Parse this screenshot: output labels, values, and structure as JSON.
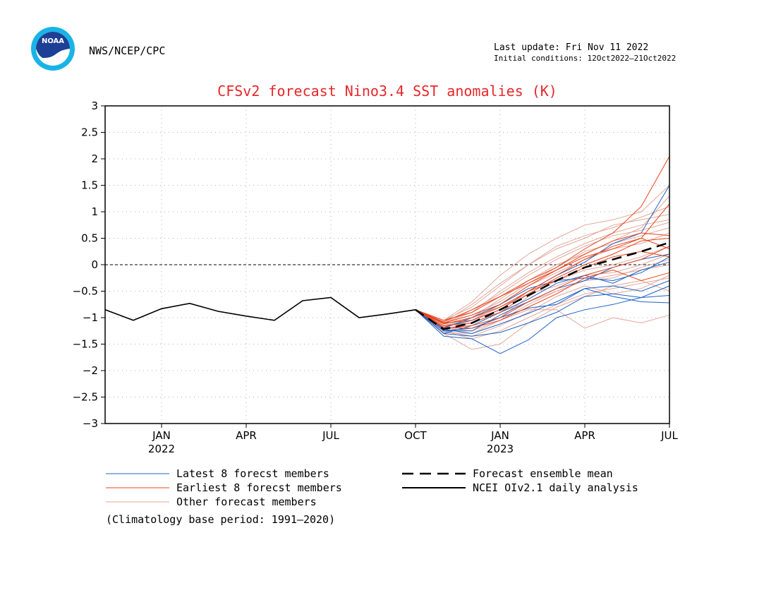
{
  "header": {
    "agency": "NWS/NCEP/CPC",
    "last_update": "Last update: Fri Nov 11 2022",
    "initial_conditions": "Initial conditions: 12Oct2022–21Oct2022",
    "logo_text": "NOAA"
  },
  "colors": {
    "title": "#e8262a",
    "latest": "#1f63c8",
    "earliest": "#e8431c",
    "other": "#e2a79a",
    "mean": "#000000",
    "observed": "#000000",
    "zero_line": "#000000",
    "grid": "#b0b0b0"
  },
  "chart_data": {
    "type": "line",
    "title": "CFSv2 forecast Nino3.4 SST anomalies (K)",
    "xlabel": "",
    "ylabel": "",
    "ylim": [
      -3,
      3
    ],
    "yticks": [
      "3",
      "2.5",
      "2",
      "1.5",
      "1",
      "0.5",
      "0",
      "−0.5",
      "−1",
      "−1.5",
      "−2",
      "−2.5",
      "−3"
    ],
    "x_range_months": [
      "2021-11",
      "2023-07"
    ],
    "x_ticks": [
      {
        "month": "2022-01",
        "label": "JAN",
        "year": "2022"
      },
      {
        "month": "2022-04",
        "label": "APR",
        "year": ""
      },
      {
        "month": "2022-07",
        "label": "JUL",
        "year": ""
      },
      {
        "month": "2022-10",
        "label": "OCT",
        "year": ""
      },
      {
        "month": "2023-01",
        "label": "JAN",
        "year": "2023"
      },
      {
        "month": "2023-04",
        "label": "APR",
        "year": ""
      },
      {
        "month": "2023-07",
        "label": "JUL",
        "year": ""
      }
    ],
    "grid": true,
    "zero_line": "dashed",
    "forecast_months": [
      "2022-10",
      "2022-11",
      "2022-12",
      "2023-01",
      "2023-02",
      "2023-03",
      "2023-04",
      "2023-05",
      "2023-06",
      "2023-07"
    ],
    "observed": {
      "name": "NCEI OIv2.1 daily analysis",
      "months": [
        "2021-11",
        "2021-12",
        "2022-01",
        "2022-02",
        "2022-03",
        "2022-04",
        "2022-05",
        "2022-06",
        "2022-07",
        "2022-08",
        "2022-09",
        "2022-10"
      ],
      "values": [
        -0.85,
        -1.05,
        -0.83,
        -0.73,
        -0.88,
        -0.97,
        -1.05,
        -0.68,
        -0.62,
        -1.0,
        -0.93,
        -0.85
      ]
    },
    "ensemble_mean": {
      "name": "Forecast ensemble mean",
      "values": [
        -0.85,
        -1.22,
        -1.1,
        -0.85,
        -0.58,
        -0.3,
        -0.05,
        0.1,
        0.25,
        0.42
      ]
    },
    "series": [
      {
        "group": "latest",
        "values": [
          -0.85,
          -1.35,
          -1.4,
          -1.68,
          -1.42,
          -1.0,
          -0.85,
          -0.75,
          -0.62,
          -0.4
        ]
      },
      {
        "group": "latest",
        "values": [
          -0.85,
          -1.3,
          -1.35,
          -1.28,
          -1.1,
          -0.9,
          -0.6,
          -0.55,
          -0.62,
          -0.58
        ]
      },
      {
        "group": "latest",
        "values": [
          -0.85,
          -1.25,
          -1.2,
          -1.0,
          -0.82,
          -0.75,
          -0.45,
          -0.6,
          -0.7,
          -0.72
        ]
      },
      {
        "group": "latest",
        "values": [
          -0.85,
          -1.22,
          -1.3,
          -1.12,
          -0.92,
          -0.7,
          -0.45,
          -0.4,
          -0.5,
          -0.3
        ]
      },
      {
        "group": "latest",
        "values": [
          -0.85,
          -1.2,
          -1.0,
          -0.75,
          -0.45,
          -0.3,
          -0.25,
          -0.3,
          -0.15,
          0.15
        ]
      },
      {
        "group": "latest",
        "values": [
          -0.85,
          -1.18,
          -1.05,
          -0.85,
          -0.5,
          -0.2,
          0.05,
          0.4,
          0.6,
          1.5
        ]
      },
      {
        "group": "latest",
        "values": [
          -0.85,
          -1.25,
          -1.25,
          -0.95,
          -0.7,
          -0.45,
          -0.3,
          -0.05,
          0.1,
          0.2
        ]
      },
      {
        "group": "latest",
        "values": [
          -0.85,
          -1.3,
          -1.15,
          -0.9,
          -0.65,
          -0.35,
          -0.2,
          -0.35,
          -0.1,
          0.05
        ]
      },
      {
        "group": "earliest",
        "values": [
          -0.85,
          -1.05,
          -0.9,
          -0.6,
          -0.3,
          -0.05,
          0.3,
          0.6,
          1.1,
          2.05
        ]
      },
      {
        "group": "earliest",
        "values": [
          -0.85,
          -1.1,
          -0.95,
          -0.75,
          -0.4,
          -0.1,
          0.15,
          0.3,
          0.5,
          1.15
        ]
      },
      {
        "group": "earliest",
        "values": [
          -0.85,
          -1.15,
          -1.1,
          -0.9,
          -0.55,
          -0.25,
          0.0,
          0.2,
          0.45,
          0.5
        ]
      },
      {
        "group": "earliest",
        "values": [
          -0.85,
          -1.12,
          -1.0,
          -0.8,
          -0.5,
          -0.2,
          0.1,
          0.35,
          0.5,
          0.3
        ]
      },
      {
        "group": "earliest",
        "values": [
          -0.85,
          -1.2,
          -1.15,
          -1.0,
          -0.7,
          -0.45,
          -0.2,
          -0.05,
          0.1,
          0.35
        ]
      },
      {
        "group": "earliest",
        "values": [
          -0.85,
          -1.08,
          -0.85,
          -0.6,
          -0.35,
          -0.1,
          0.2,
          0.45,
          0.6,
          0.55
        ]
      },
      {
        "group": "earliest",
        "values": [
          -0.85,
          -1.18,
          -1.2,
          -1.05,
          -0.8,
          -0.55,
          -0.25,
          -0.1,
          -0.3,
          -0.15
        ]
      },
      {
        "group": "earliest",
        "values": [
          -0.85,
          -1.1,
          -1.05,
          -0.85,
          -0.5,
          -0.3,
          -0.05,
          0.15,
          0.25,
          0.15
        ]
      },
      {
        "group": "other",
        "values": [
          -0.85,
          -1.3,
          -1.6,
          -1.5,
          -1.1,
          -0.8,
          -0.6,
          -0.4,
          -0.3,
          -0.5
        ]
      },
      {
        "group": "other",
        "values": [
          -0.85,
          -1.05,
          -0.7,
          -0.2,
          0.2,
          0.5,
          0.75,
          0.85,
          1.0,
          1.5
        ]
      },
      {
        "group": "other",
        "values": [
          -0.85,
          -1.2,
          -1.25,
          -1.05,
          -0.85,
          -0.85,
          -1.2,
          -1.0,
          -1.1,
          -0.95
        ]
      },
      {
        "group": "other",
        "values": [
          -0.85,
          -1.15,
          -1.0,
          -0.65,
          -0.3,
          0.0,
          0.2,
          0.45,
          0.7,
          1.3
        ]
      },
      {
        "group": "other",
        "values": [
          -0.85,
          -1.25,
          -1.35,
          -1.15,
          -0.9,
          -0.6,
          -0.4,
          -0.55,
          -0.45,
          -0.2
        ]
      },
      {
        "group": "other",
        "values": [
          -0.85,
          -1.08,
          -0.75,
          -0.35,
          0.0,
          0.3,
          0.5,
          0.75,
          0.85,
          0.95
        ]
      },
      {
        "group": "other",
        "values": [
          -0.85,
          -1.12,
          -0.85,
          -0.55,
          -0.2,
          0.1,
          0.35,
          0.55,
          0.65,
          0.8
        ]
      },
      {
        "group": "other",
        "values": [
          -0.85,
          -1.22,
          -1.1,
          -0.9,
          -0.7,
          -0.5,
          -0.3,
          -0.2,
          -0.1,
          0.0
        ]
      },
      {
        "group": "other",
        "values": [
          -0.85,
          -1.18,
          -1.05,
          -0.75,
          -0.4,
          -0.15,
          0.1,
          0.3,
          0.4,
          0.6
        ]
      },
      {
        "group": "other",
        "values": [
          -0.85,
          -1.28,
          -1.3,
          -1.05,
          -0.75,
          -0.5,
          -0.3,
          -0.25,
          -0.05,
          0.1
        ]
      },
      {
        "group": "other",
        "values": [
          -0.85,
          -1.1,
          -0.9,
          -0.5,
          -0.15,
          0.15,
          0.4,
          0.6,
          0.75,
          0.85
        ]
      },
      {
        "group": "other",
        "values": [
          -0.85,
          -1.2,
          -1.2,
          -1.0,
          -0.6,
          -0.3,
          -0.1,
          0.0,
          0.15,
          0.35
        ]
      },
      {
        "group": "other",
        "values": [
          -0.85,
          -1.15,
          -1.05,
          -0.8,
          -0.55,
          -0.4,
          -0.2,
          -0.15,
          0.0,
          0.2
        ]
      },
      {
        "group": "other",
        "values": [
          -0.85,
          -1.05,
          -0.8,
          -0.4,
          0.0,
          0.35,
          0.55,
          0.7,
          0.9,
          1.1
        ]
      },
      {
        "group": "other",
        "values": [
          -0.85,
          -1.25,
          -1.4,
          -1.25,
          -1.0,
          -0.75,
          -0.55,
          -0.45,
          -0.35,
          -0.25
        ]
      },
      {
        "group": "other",
        "values": [
          -0.85,
          -1.1,
          -0.95,
          -0.7,
          -0.35,
          -0.05,
          0.25,
          0.4,
          0.55,
          0.7
        ]
      }
    ]
  },
  "legend": {
    "latest": "Latest 8 forecst members",
    "earliest": "Earliest 8 forecst members",
    "other": "Other forecast members",
    "mean": "Forecast ensemble mean",
    "observed": "NCEI OIv2.1 daily analysis",
    "footnote": "(Climatology base period: 1991–2020)"
  }
}
